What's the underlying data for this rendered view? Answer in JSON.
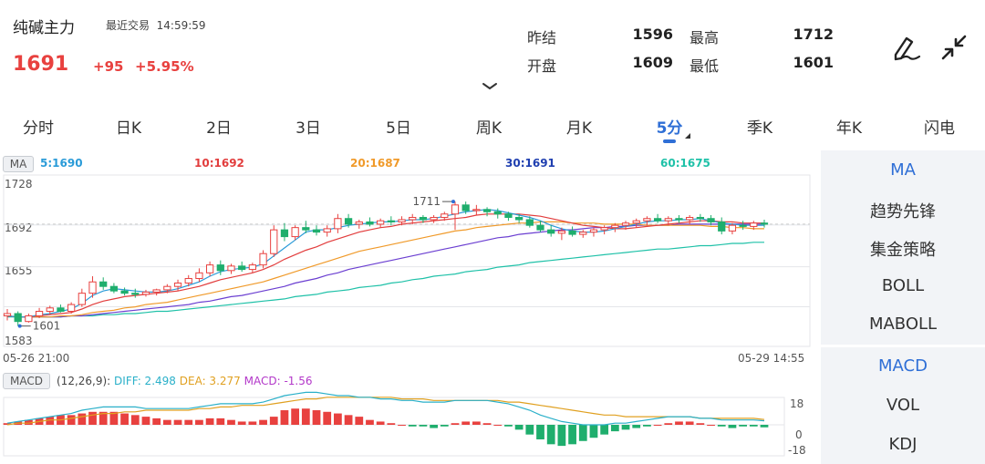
{
  "header": {
    "title": "纯碱主力",
    "last_trade": "最近交易",
    "time": "14:59:59",
    "price": "1691",
    "change": "+95",
    "change_pct": "+5.95%"
  },
  "quote": {
    "prev_settle_label": "昨结",
    "prev_settle": "1596",
    "open_label": "开盘",
    "open": "1609",
    "high_label": "最高",
    "high": "1712",
    "low_label": "最低",
    "low": "1601"
  },
  "icons": {
    "draw": "pen-draw-icon",
    "collapse": "collapse-arrows-icon",
    "expand": "chevron-down-icon"
  },
  "tabs": [
    "分时",
    "日K",
    "2日",
    "3日",
    "5日",
    "周K",
    "月K",
    "5分",
    "季K",
    "年K",
    "闪电"
  ],
  "active_tab": "5分",
  "side_menu": {
    "main": [
      "MA",
      "趋势先锋",
      "集金策略",
      "BOLL",
      "MABOLL"
    ],
    "sub": [
      "MACD",
      "VOL",
      "KDJ"
    ]
  },
  "colors": {
    "up": "#e8413f",
    "down": "#1fae6d",
    "accent": "#2f6fd6",
    "ma5": "#2a9bd8",
    "ma10": "#e23d3d",
    "ma20": "#f09a2a",
    "ma30": "#6b3fd1",
    "ma60": "#1fc1a8"
  },
  "chart_data": [
    {
      "type": "candlestick",
      "indicator_label": "MA",
      "legend": [
        {
          "name": "5",
          "value": "1690",
          "text": "5:1690"
        },
        {
          "name": "10",
          "value": "1692",
          "text": "10:1692"
        },
        {
          "name": "20",
          "value": "1687",
          "text": "20:1687"
        },
        {
          "name": "30",
          "value": "1691",
          "text": "30:1691"
        },
        {
          "name": "60",
          "value": "1675",
          "text": "60:1675"
        }
      ],
      "ylim": [
        1583,
        1728
      ],
      "y_ticks": [
        "1728",
        "1692",
        "1655",
        "1583"
      ],
      "x_start": "05-26 21:00",
      "x_end": "05-29 14:55",
      "annotations": {
        "max_label": "1711",
        "max_value": 1711,
        "min_label": "1601",
        "min_value": 1601
      },
      "grid": true,
      "candles": [
        [
          1610,
          1616,
          1606,
          1612
        ],
        [
          1612,
          1614,
          1601,
          1605
        ],
        [
          1605,
          1612,
          1604,
          1610
        ],
        [
          1610,
          1617,
          1608,
          1614
        ],
        [
          1614,
          1619,
          1611,
          1617
        ],
        [
          1617,
          1620,
          1613,
          1614
        ],
        [
          1614,
          1622,
          1612,
          1620
        ],
        [
          1620,
          1634,
          1618,
          1630
        ],
        [
          1630,
          1645,
          1626,
          1640
        ],
        [
          1640,
          1644,
          1633,
          1636
        ],
        [
          1636,
          1639,
          1630,
          1632
        ],
        [
          1632,
          1635,
          1628,
          1630
        ],
        [
          1630,
          1634,
          1626,
          1629
        ],
        [
          1629,
          1633,
          1627,
          1631
        ],
        [
          1631,
          1634,
          1628,
          1633
        ],
        [
          1633,
          1638,
          1630,
          1636
        ],
        [
          1636,
          1642,
          1632,
          1639
        ],
        [
          1639,
          1646,
          1636,
          1643
        ],
        [
          1643,
          1652,
          1640,
          1648
        ],
        [
          1648,
          1658,
          1645,
          1655
        ],
        [
          1655,
          1659,
          1646,
          1650
        ],
        [
          1650,
          1656,
          1647,
          1654
        ],
        [
          1654,
          1658,
          1649,
          1651
        ],
        [
          1651,
          1657,
          1648,
          1655
        ],
        [
          1655,
          1668,
          1652,
          1665
        ],
        [
          1665,
          1690,
          1662,
          1686
        ],
        [
          1686,
          1692,
          1676,
          1680
        ],
        [
          1680,
          1690,
          1677,
          1688
        ],
        [
          1688,
          1694,
          1683,
          1686
        ],
        [
          1686,
          1690,
          1681,
          1684
        ],
        [
          1684,
          1690,
          1680,
          1687
        ],
        [
          1687,
          1700,
          1683,
          1696
        ],
        [
          1696,
          1700,
          1688,
          1691
        ],
        [
          1691,
          1695,
          1687,
          1693
        ],
        [
          1693,
          1697,
          1689,
          1691
        ],
        [
          1691,
          1696,
          1688,
          1694
        ],
        [
          1694,
          1698,
          1690,
          1693
        ],
        [
          1693,
          1698,
          1690,
          1695
        ],
        [
          1695,
          1700,
          1691,
          1697
        ],
        [
          1697,
          1699,
          1692,
          1695
        ],
        [
          1695,
          1699,
          1692,
          1697
        ],
        [
          1697,
          1702,
          1694,
          1700
        ],
        [
          1700,
          1711,
          1686,
          1708
        ],
        [
          1708,
          1711,
          1700,
          1703
        ],
        [
          1703,
          1708,
          1699,
          1704
        ],
        [
          1704,
          1706,
          1698,
          1702
        ],
        [
          1702,
          1705,
          1696,
          1700
        ],
        [
          1700,
          1702,
          1694,
          1697
        ],
        [
          1697,
          1700,
          1692,
          1695
        ],
        [
          1695,
          1698,
          1688,
          1690
        ],
        [
          1690,
          1694,
          1684,
          1686
        ],
        [
          1686,
          1690,
          1680,
          1683
        ],
        [
          1683,
          1688,
          1677,
          1685
        ],
        [
          1685,
          1689,
          1680,
          1682
        ],
        [
          1682,
          1686,
          1679,
          1684
        ],
        [
          1684,
          1688,
          1680,
          1686
        ],
        [
          1686,
          1690,
          1682,
          1688
        ],
        [
          1688,
          1692,
          1684,
          1690
        ],
        [
          1690,
          1694,
          1686,
          1692
        ],
        [
          1692,
          1696,
          1688,
          1694
        ],
        [
          1694,
          1698,
          1690,
          1696
        ],
        [
          1696,
          1700,
          1692,
          1694
        ],
        [
          1694,
          1698,
          1690,
          1696
        ],
        [
          1696,
          1699,
          1692,
          1695
        ],
        [
          1695,
          1699,
          1691,
          1697
        ],
        [
          1697,
          1700,
          1693,
          1696
        ],
        [
          1696,
          1699,
          1690,
          1693
        ],
        [
          1693,
          1697,
          1682,
          1685
        ],
        [
          1685,
          1692,
          1682,
          1690
        ],
        [
          1690,
          1694,
          1686,
          1689
        ],
        [
          1689,
          1694,
          1686,
          1692
        ],
        [
          1692,
          1695,
          1688,
          1691
        ]
      ],
      "ma": {
        "ma5": [
          1610,
          1609,
          1609,
          1611,
          1612,
          1614,
          1616,
          1621,
          1628,
          1632,
          1634,
          1633,
          1632,
          1631,
          1631,
          1632,
          1634,
          1637,
          1640,
          1645,
          1649,
          1651,
          1652,
          1653,
          1656,
          1663,
          1670,
          1677,
          1684,
          1686,
          1686,
          1688,
          1690,
          1691,
          1692,
          1693,
          1693,
          1694,
          1695,
          1695,
          1696,
          1698,
          1700,
          1702,
          1703,
          1704,
          1703,
          1701,
          1699,
          1697,
          1694,
          1690,
          1687,
          1685,
          1684,
          1684,
          1685,
          1687,
          1689,
          1691,
          1693,
          1694,
          1694,
          1695,
          1695,
          1696,
          1694,
          1692,
          1691,
          1690,
          1690,
          1690
        ],
        "ma10": [
          1610,
          1609,
          1609,
          1610,
          1611,
          1612,
          1613,
          1616,
          1620,
          1623,
          1625,
          1627,
          1628,
          1629,
          1630,
          1631,
          1632,
          1634,
          1636,
          1639,
          1642,
          1644,
          1646,
          1648,
          1651,
          1655,
          1660,
          1664,
          1668,
          1671,
          1675,
          1678,
          1681,
          1684,
          1686,
          1688,
          1689,
          1691,
          1692,
          1693,
          1694,
          1695,
          1696,
          1697,
          1699,
          1700,
          1700,
          1700,
          1700,
          1699,
          1698,
          1696,
          1694,
          1692,
          1690,
          1689,
          1688,
          1687,
          1687,
          1688,
          1689,
          1690,
          1691,
          1692,
          1693,
          1694,
          1694,
          1693,
          1693,
          1692,
          1692,
          1692
        ],
        "ma20": [
          1610,
          1609,
          1609,
          1609,
          1609,
          1610,
          1610,
          1611,
          1613,
          1614,
          1615,
          1617,
          1618,
          1620,
          1621,
          1622,
          1624,
          1626,
          1628,
          1630,
          1632,
          1634,
          1636,
          1638,
          1640,
          1643,
          1646,
          1649,
          1652,
          1655,
          1658,
          1661,
          1664,
          1667,
          1669,
          1671,
          1673,
          1675,
          1677,
          1679,
          1681,
          1683,
          1685,
          1686,
          1688,
          1689,
          1690,
          1691,
          1692,
          1692,
          1693,
          1693,
          1693,
          1692,
          1692,
          1692,
          1691,
          1691,
          1691,
          1691,
          1690,
          1690,
          1690,
          1690,
          1690,
          1690,
          1689,
          1689,
          1688,
          1688,
          1687,
          1687
        ],
        "ma30": [
          1610,
          1609,
          1609,
          1609,
          1609,
          1609,
          1610,
          1610,
          1611,
          1612,
          1613,
          1614,
          1615,
          1616,
          1617,
          1618,
          1619,
          1620,
          1622,
          1623,
          1625,
          1627,
          1628,
          1630,
          1632,
          1634,
          1636,
          1639,
          1641,
          1643,
          1646,
          1648,
          1651,
          1653,
          1655,
          1657,
          1659,
          1661,
          1663,
          1665,
          1667,
          1669,
          1671,
          1673,
          1675,
          1677,
          1679,
          1680,
          1682,
          1683,
          1684,
          1685,
          1686,
          1686,
          1687,
          1688,
          1688,
          1689,
          1689,
          1690,
          1690,
          1690,
          1690,
          1691,
          1691,
          1691,
          1691,
          1691,
          1691,
          1691,
          1691,
          1691
        ],
        "ma60": [
          1609,
          1609,
          1609,
          1609,
          1609,
          1609,
          1610,
          1610,
          1610,
          1611,
          1611,
          1612,
          1612,
          1613,
          1614,
          1614,
          1615,
          1616,
          1617,
          1618,
          1619,
          1620,
          1621,
          1622,
          1623,
          1624,
          1625,
          1627,
          1628,
          1629,
          1631,
          1632,
          1633,
          1635,
          1636,
          1637,
          1639,
          1640,
          1642,
          1643,
          1645,
          1646,
          1647,
          1649,
          1650,
          1651,
          1653,
          1654,
          1655,
          1657,
          1658,
          1659,
          1660,
          1661,
          1662,
          1663,
          1664,
          1665,
          1666,
          1667,
          1668,
          1669,
          1669,
          1670,
          1671,
          1672,
          1672,
          1673,
          1674,
          1674,
          1675,
          1675
        ]
      }
    },
    {
      "type": "bar",
      "indicator_label": "MACD",
      "params": "(12,26,9):",
      "legend": [
        {
          "name": "DIFF",
          "value": "2.498",
          "text": "DIFF: 2.498"
        },
        {
          "name": "DEA",
          "value": "3.277",
          "text": "DEA: 3.277"
        },
        {
          "name": "MACD",
          "value": "-1.56",
          "text": "MACD: -1.56"
        }
      ],
      "ylim": [
        -18,
        18
      ],
      "y_ticks": [
        "18",
        "0",
        "-18"
      ],
      "macd": [
        1,
        2,
        3,
        4,
        5,
        6,
        6,
        7,
        8,
        8,
        8,
        7,
        6,
        5,
        4,
        3,
        3,
        3,
        3,
        4,
        4,
        3,
        2,
        2,
        3,
        5,
        9,
        10,
        10,
        9,
        8,
        7,
        6,
        5,
        3,
        2,
        1,
        0,
        -1,
        -1,
        -2,
        -1,
        1,
        2,
        2,
        1,
        0,
        -1,
        -3,
        -6,
        -9,
        -12,
        -13,
        -12,
        -10,
        -8,
        -6,
        -4,
        -3,
        -2,
        -1,
        0,
        1,
        2,
        2,
        1,
        0,
        -1,
        -2,
        -1,
        -1,
        -1.56
      ],
      "diff": [
        1,
        2,
        3,
        4,
        5,
        6,
        7,
        9,
        10,
        11,
        11,
        11,
        11,
        10,
        10,
        10,
        10,
        10,
        11,
        12,
        13,
        13,
        13,
        13,
        14,
        16,
        18,
        19,
        20,
        20,
        19,
        18,
        18,
        17,
        17,
        16,
        16,
        15,
        15,
        14,
        14,
        14,
        15,
        15,
        15,
        15,
        14,
        13,
        11,
        9,
        6,
        4,
        2,
        1,
        0,
        0,
        0,
        1,
        1,
        2,
        3,
        4,
        5,
        5,
        5,
        4,
        4,
        3,
        3,
        3,
        3,
        2.498
      ],
      "dea": [
        0,
        1,
        1,
        2,
        3,
        3,
        4,
        5,
        6,
        7,
        7,
        8,
        8,
        9,
        9,
        9,
        9,
        9,
        10,
        10,
        11,
        11,
        12,
        12,
        12,
        13,
        14,
        15,
        16,
        16,
        17,
        17,
        17,
        17,
        17,
        17,
        17,
        16,
        16,
        16,
        15,
        15,
        15,
        15,
        15,
        15,
        15,
        14,
        14,
        13,
        12,
        11,
        10,
        9,
        8,
        7,
        6,
        6,
        5,
        5,
        5,
        5,
        5,
        5,
        5,
        4,
        4,
        4,
        4,
        4,
        4,
        3.277
      ]
    }
  ]
}
